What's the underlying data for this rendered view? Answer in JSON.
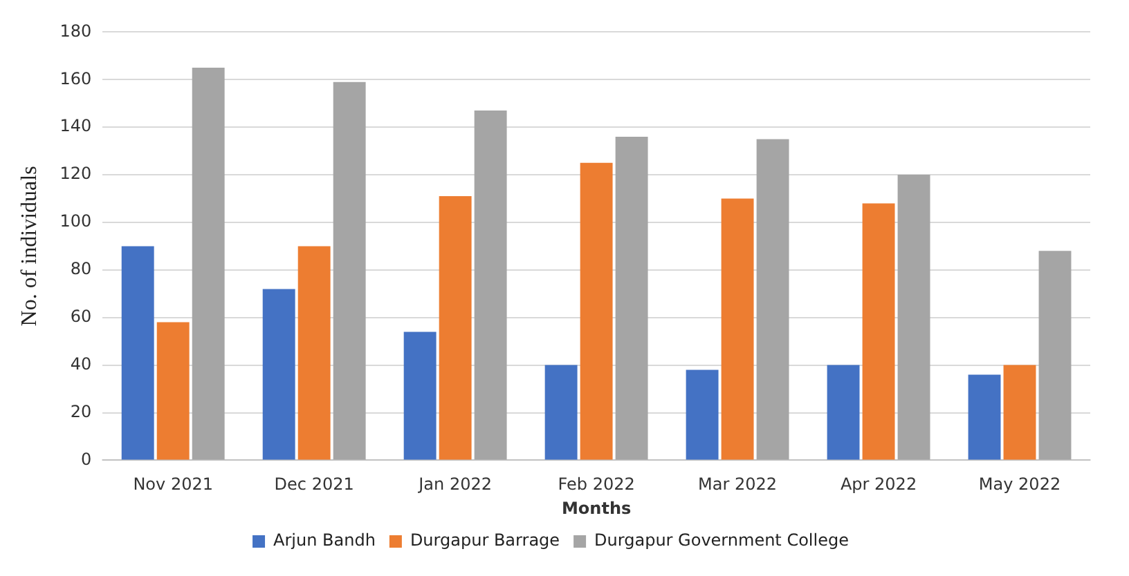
{
  "chart_data": {
    "type": "bar",
    "xlabel": "Months",
    "ylabel": "No. of individuals",
    "categories": [
      "Nov 2021",
      "Dec 2021",
      "Jan 2022",
      "Feb 2022",
      "Mar 2022",
      "Apr 2022",
      "May 2022"
    ],
    "series": [
      {
        "name": "Arjun Bandh",
        "color": "#4472c4",
        "values": [
          90,
          72,
          54,
          40,
          38,
          40,
          36
        ]
      },
      {
        "name": "Durgapur Barrage",
        "color": "#ed7d31",
        "values": [
          58,
          90,
          111,
          125,
          110,
          108,
          40
        ]
      },
      {
        "name": "Durgapur Government College",
        "color": "#a5a5a5",
        "values": [
          165,
          159,
          147,
          136,
          135,
          120,
          88
        ]
      }
    ],
    "ylim": [
      0,
      180
    ],
    "yticks": [
      0,
      20,
      40,
      60,
      80,
      100,
      120,
      140,
      160,
      180
    ],
    "grid": "y",
    "legend": "bottom"
  }
}
